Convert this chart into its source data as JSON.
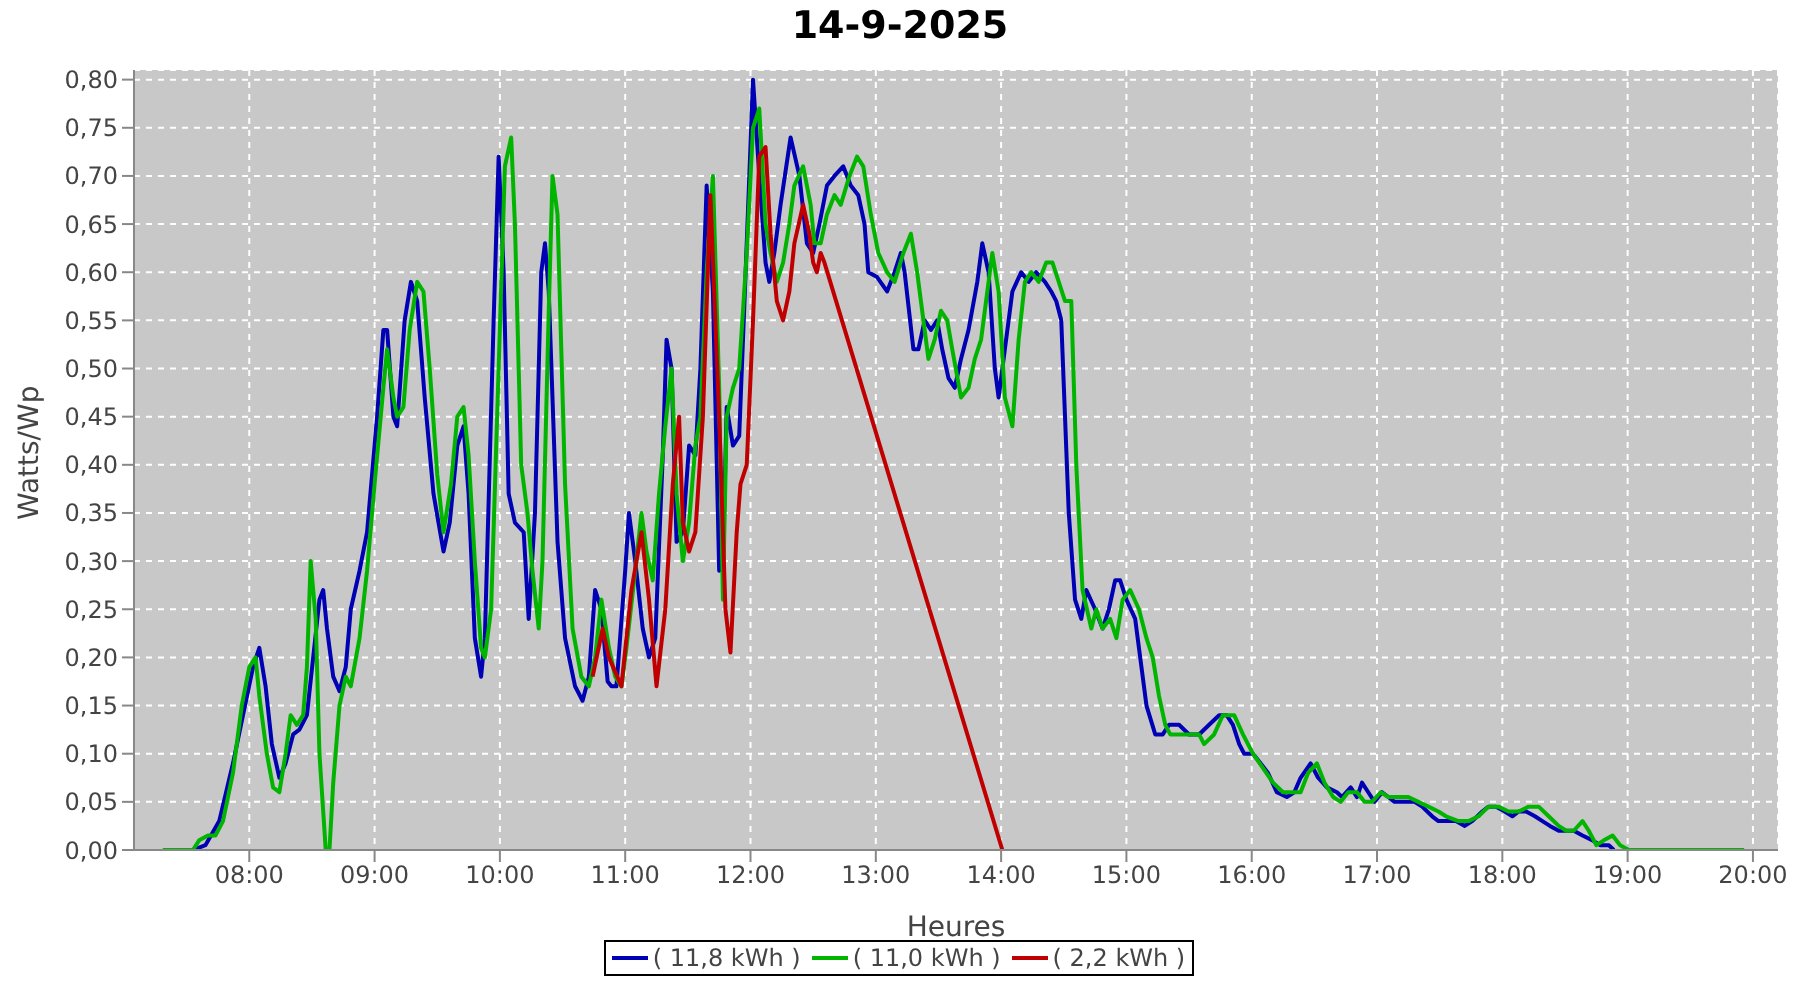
{
  "chart_data": {
    "type": "line",
    "title": "14-9-2025",
    "xlabel": "Heures",
    "ylabel": "Watts/Wp",
    "xlim": [
      7.08,
      20.2
    ],
    "xticks": [
      {
        "value": 8,
        "label": "08:00"
      },
      {
        "value": 9,
        "label": "09:00"
      },
      {
        "value": 10,
        "label": "10:00"
      },
      {
        "value": 11,
        "label": "11:00"
      },
      {
        "value": 12,
        "label": "12:00"
      },
      {
        "value": 13,
        "label": "13:00"
      },
      {
        "value": 14,
        "label": "14:00"
      },
      {
        "value": 15,
        "label": "15:00"
      },
      {
        "value": 16,
        "label": "16:00"
      },
      {
        "value": 17,
        "label": "17:00"
      },
      {
        "value": 18,
        "label": "18:00"
      },
      {
        "value": 19,
        "label": "19:00"
      },
      {
        "value": 20,
        "label": "20:00"
      }
    ],
    "ylim": [
      0,
      0.81
    ],
    "yticks": [
      {
        "value": 0,
        "label": "0,00"
      },
      {
        "value": 0.05,
        "label": "0,05"
      },
      {
        "value": 0.1,
        "label": "0,10"
      },
      {
        "value": 0.15,
        "label": "0,15"
      },
      {
        "value": 0.2,
        "label": "0,20"
      },
      {
        "value": 0.25,
        "label": "0,25"
      },
      {
        "value": 0.3,
        "label": "0,30"
      },
      {
        "value": 0.35,
        "label": "0,35"
      },
      {
        "value": 0.4,
        "label": "0,40"
      },
      {
        "value": 0.45,
        "label": "0,45"
      },
      {
        "value": 0.5,
        "label": "0,50"
      },
      {
        "value": 0.55,
        "label": "0,55"
      },
      {
        "value": 0.6,
        "label": "0,60"
      },
      {
        "value": 0.65,
        "label": "0,65"
      },
      {
        "value": 0.7,
        "label": "0,70"
      },
      {
        "value": 0.75,
        "label": "0,75"
      },
      {
        "value": 0.8,
        "label": "0,80"
      }
    ],
    "grid": true,
    "legend": "bottom",
    "marker": "none",
    "line_style": "solid",
    "series": [
      {
        "name": "( 11,8 kWh )",
        "color": "#0000b4",
        "x": [
          7.55,
          7.65,
          7.76,
          7.87,
          7.95,
          8.03,
          8.08,
          8.13,
          8.18,
          8.24,
          8.29,
          8.35,
          8.4,
          8.46,
          8.51,
          8.56,
          8.59,
          8.62,
          8.67,
          8.72,
          8.77,
          8.81,
          8.88,
          8.94,
          9.02,
          9.07,
          9.1,
          9.15,
          9.18,
          9.24,
          9.29,
          9.34,
          9.4,
          9.47,
          9.55,
          9.6,
          9.66,
          9.71,
          9.75,
          9.8,
          9.85,
          9.88,
          9.95,
          9.99,
          10.03,
          10.07,
          10.12,
          10.19,
          10.23,
          10.28,
          10.33,
          10.36,
          10.39,
          10.46,
          10.52,
          10.6,
          10.66,
          10.71,
          10.76,
          10.81,
          10.86,
          10.89,
          10.93,
          11.0,
          11.03,
          11.08,
          11.14,
          11.19,
          11.24,
          11.3,
          11.33,
          11.37,
          11.41,
          11.46,
          11.51,
          11.56,
          11.6,
          11.65,
          11.7,
          11.75,
          11.78,
          11.81,
          11.86,
          11.91,
          11.97,
          12.02,
          12.07,
          12.12,
          12.15,
          12.19,
          12.24,
          12.32,
          12.39,
          12.45,
          12.5,
          12.55,
          12.61,
          12.67,
          12.74,
          12.8,
          12.86,
          12.91,
          12.94,
          13.01,
          13.09,
          13.15,
          13.2,
          13.23,
          13.3,
          13.34,
          13.39,
          13.44,
          13.49,
          13.53,
          13.58,
          13.63,
          13.68,
          13.74,
          13.81,
          13.85,
          13.9,
          13.95,
          13.98,
          14.03,
          14.09,
          14.16,
          14.22,
          14.28,
          14.35,
          14.4,
          14.44,
          14.48,
          14.54,
          14.59,
          14.64,
          14.68,
          14.75,
          14.81,
          14.86,
          14.91,
          14.95,
          15.0,
          15.07,
          15.11,
          15.16,
          15.23,
          15.29,
          15.34,
          15.42,
          15.5,
          15.58,
          15.66,
          15.74,
          15.8,
          15.85,
          15.9,
          15.94,
          16.01,
          16.07,
          16.13,
          16.2,
          16.28,
          16.34,
          16.39,
          16.47,
          16.53,
          16.6,
          16.68,
          16.72,
          16.79,
          16.84,
          16.88,
          16.93,
          16.98,
          17.04,
          17.09,
          17.14,
          17.22,
          17.3,
          17.36,
          17.44,
          17.49,
          17.55,
          17.63,
          17.7,
          17.76,
          17.84,
          17.89,
          17.95,
          18.02,
          18.08,
          18.13,
          18.19,
          18.26,
          18.32,
          18.38,
          18.45,
          18.51,
          18.57,
          18.64,
          18.72,
          18.78,
          18.85,
          18.89
        ],
        "values": [
          0,
          0.005,
          0.03,
          0.09,
          0.14,
          0.19,
          0.21,
          0.17,
          0.11,
          0.075,
          0.09,
          0.12,
          0.125,
          0.14,
          0.2,
          0.26,
          0.27,
          0.23,
          0.18,
          0.165,
          0.19,
          0.25,
          0.29,
          0.33,
          0.45,
          0.54,
          0.54,
          0.45,
          0.44,
          0.55,
          0.59,
          0.57,
          0.47,
          0.37,
          0.31,
          0.34,
          0.42,
          0.44,
          0.37,
          0.22,
          0.18,
          0.22,
          0.55,
          0.72,
          0.6,
          0.37,
          0.34,
          0.33,
          0.24,
          0.35,
          0.6,
          0.63,
          0.58,
          0.32,
          0.22,
          0.17,
          0.155,
          0.18,
          0.27,
          0.25,
          0.175,
          0.17,
          0.17,
          0.29,
          0.35,
          0.3,
          0.23,
          0.2,
          0.22,
          0.41,
          0.53,
          0.5,
          0.32,
          0.33,
          0.42,
          0.41,
          0.5,
          0.69,
          0.58,
          0.29,
          0.3,
          0.46,
          0.42,
          0.43,
          0.63,
          0.8,
          0.7,
          0.61,
          0.59,
          0.62,
          0.67,
          0.74,
          0.7,
          0.63,
          0.62,
          0.65,
          0.69,
          0.7,
          0.71,
          0.69,
          0.68,
          0.65,
          0.6,
          0.595,
          0.58,
          0.6,
          0.62,
          0.6,
          0.52,
          0.52,
          0.55,
          0.54,
          0.55,
          0.52,
          0.49,
          0.48,
          0.51,
          0.54,
          0.59,
          0.63,
          0.6,
          0.5,
          0.47,
          0.52,
          0.58,
          0.6,
          0.59,
          0.6,
          0.59,
          0.58,
          0.57,
          0.55,
          0.35,
          0.26,
          0.24,
          0.27,
          0.25,
          0.23,
          0.25,
          0.28,
          0.28,
          0.26,
          0.24,
          0.2,
          0.15,
          0.12,
          0.12,
          0.13,
          0.13,
          0.12,
          0.12,
          0.13,
          0.14,
          0.14,
          0.13,
          0.11,
          0.1,
          0.1,
          0.09,
          0.08,
          0.06,
          0.055,
          0.06,
          0.075,
          0.09,
          0.075,
          0.065,
          0.06,
          0.055,
          0.065,
          0.055,
          0.07,
          0.06,
          0.05,
          0.06,
          0.055,
          0.05,
          0.05,
          0.05,
          0.045,
          0.035,
          0.03,
          0.03,
          0.03,
          0.025,
          0.03,
          0.04,
          0.045,
          0.045,
          0.04,
          0.035,
          0.04,
          0.04,
          0.035,
          0.03,
          0.025,
          0.02,
          0.02,
          0.02,
          0.015,
          0.01,
          0.005,
          0.005,
          0
        ]
      },
      {
        "name": "( 11,0 kWh )",
        "color": "#00b400",
        "x": [
          7.31,
          7.55,
          7.6,
          7.67,
          7.73,
          7.79,
          7.87,
          7.94,
          8.0,
          8.05,
          8.08,
          8.14,
          8.19,
          8.24,
          8.29,
          8.33,
          8.38,
          8.43,
          8.46,
          8.49,
          8.53,
          8.56,
          8.61,
          8.64,
          8.67,
          8.72,
          8.77,
          8.81,
          8.88,
          8.94,
          9.0,
          9.07,
          9.1,
          9.15,
          9.18,
          9.23,
          9.28,
          9.34,
          9.39,
          9.44,
          9.5,
          9.55,
          9.61,
          9.66,
          9.71,
          9.75,
          9.8,
          9.85,
          9.88,
          9.93,
          9.99,
          10.04,
          10.09,
          10.12,
          10.17,
          10.22,
          10.26,
          10.31,
          10.34,
          10.39,
          10.42,
          10.46,
          10.52,
          10.58,
          10.65,
          10.71,
          10.76,
          10.81,
          10.87,
          10.92,
          10.97,
          11.01,
          11.08,
          11.13,
          11.17,
          11.22,
          11.27,
          11.32,
          11.37,
          11.41,
          11.46,
          11.51,
          11.56,
          11.6,
          11.65,
          11.7,
          11.75,
          11.78,
          11.81,
          11.86,
          11.91,
          11.97,
          12.02,
          12.07,
          12.12,
          12.16,
          12.21,
          12.26,
          12.31,
          12.35,
          12.42,
          12.48,
          12.51,
          12.56,
          12.61,
          12.67,
          12.72,
          12.79,
          12.85,
          12.9,
          12.96,
          13.02,
          13.09,
          13.15,
          13.22,
          13.28,
          13.33,
          13.38,
          13.42,
          13.47,
          13.52,
          13.57,
          13.61,
          13.68,
          13.74,
          13.79,
          13.84,
          13.89,
          13.93,
          13.98,
          14.03,
          14.09,
          14.14,
          14.19,
          14.24,
          14.3,
          14.36,
          14.41,
          14.46,
          14.51,
          14.56,
          14.6,
          14.65,
          14.72,
          14.76,
          14.81,
          14.87,
          14.92,
          14.97,
          15.03,
          15.1,
          15.16,
          15.21,
          15.26,
          15.31,
          15.35,
          15.42,
          15.5,
          15.58,
          15.62,
          15.7,
          15.77,
          15.86,
          15.93,
          16.01,
          16.09,
          16.17,
          16.25,
          16.31,
          16.39,
          16.45,
          16.52,
          16.58,
          16.65,
          16.71,
          16.77,
          16.84,
          16.9,
          16.96,
          17.03,
          17.09,
          17.17,
          17.25,
          17.33,
          17.41,
          17.49,
          17.55,
          17.65,
          17.73,
          17.81,
          17.89,
          17.97,
          18.05,
          18.13,
          18.21,
          18.29,
          18.37,
          18.45,
          18.51,
          18.57,
          18.64,
          18.69,
          18.75,
          18.81,
          18.88,
          18.94,
          19.01,
          19.09,
          19.93
        ],
        "values": [
          0,
          0,
          0.01,
          0.015,
          0.015,
          0.03,
          0.08,
          0.15,
          0.19,
          0.2,
          0.16,
          0.1,
          0.065,
          0.06,
          0.1,
          0.14,
          0.13,
          0.14,
          0.19,
          0.3,
          0.24,
          0.1,
          0,
          0,
          0.07,
          0.15,
          0.18,
          0.17,
          0.22,
          0.29,
          0.38,
          0.48,
          0.52,
          0.47,
          0.45,
          0.46,
          0.54,
          0.59,
          0.58,
          0.5,
          0.39,
          0.33,
          0.38,
          0.45,
          0.46,
          0.41,
          0.3,
          0.21,
          0.2,
          0.25,
          0.5,
          0.71,
          0.74,
          0.65,
          0.4,
          0.35,
          0.29,
          0.23,
          0.3,
          0.56,
          0.7,
          0.66,
          0.38,
          0.23,
          0.18,
          0.17,
          0.2,
          0.26,
          0.21,
          0.18,
          0.17,
          0.21,
          0.29,
          0.35,
          0.31,
          0.28,
          0.37,
          0.44,
          0.5,
          0.37,
          0.3,
          0.34,
          0.42,
          0.45,
          0.6,
          0.7,
          0.48,
          0.26,
          0.45,
          0.48,
          0.5,
          0.62,
          0.75,
          0.77,
          0.65,
          0.62,
          0.59,
          0.61,
          0.65,
          0.69,
          0.71,
          0.67,
          0.63,
          0.63,
          0.66,
          0.68,
          0.67,
          0.7,
          0.72,
          0.71,
          0.66,
          0.62,
          0.6,
          0.59,
          0.62,
          0.64,
          0.6,
          0.55,
          0.51,
          0.53,
          0.56,
          0.55,
          0.52,
          0.47,
          0.48,
          0.51,
          0.53,
          0.58,
          0.62,
          0.58,
          0.47,
          0.44,
          0.53,
          0.59,
          0.6,
          0.59,
          0.61,
          0.61,
          0.59,
          0.57,
          0.57,
          0.4,
          0.27,
          0.23,
          0.25,
          0.23,
          0.24,
          0.22,
          0.26,
          0.27,
          0.25,
          0.22,
          0.2,
          0.16,
          0.13,
          0.12,
          0.12,
          0.12,
          0.12,
          0.11,
          0.12,
          0.14,
          0.14,
          0.12,
          0.1,
          0.085,
          0.07,
          0.06,
          0.06,
          0.06,
          0.08,
          0.09,
          0.07,
          0.055,
          0.05,
          0.06,
          0.06,
          0.05,
          0.05,
          0.06,
          0.055,
          0.055,
          0.055,
          0.05,
          0.045,
          0.04,
          0.035,
          0.03,
          0.03,
          0.035,
          0.045,
          0.045,
          0.04,
          0.04,
          0.045,
          0.045,
          0.035,
          0.025,
          0.02,
          0.02,
          0.03,
          0.02,
          0.005,
          0.01,
          0.015,
          0.005,
          0,
          0,
          0
        ]
      },
      {
        "name": "( 2,2 kWh )",
        "color": "#c00000",
        "x": [
          10.74,
          10.82,
          10.87,
          10.97,
          11.05,
          11.13,
          11.19,
          11.25,
          11.32,
          11.38,
          11.43,
          11.46,
          11.51,
          11.56,
          11.62,
          11.68,
          11.75,
          11.8,
          11.84,
          11.89,
          11.92,
          11.97,
          12.02,
          12.07,
          12.12,
          12.16,
          12.21,
          12.26,
          12.31,
          12.35,
          12.42,
          12.47,
          12.5,
          12.53,
          12.56,
          12.59,
          14.01
        ],
        "values": [
          0.18,
          0.23,
          0.2,
          0.17,
          0.27,
          0.33,
          0.26,
          0.17,
          0.25,
          0.38,
          0.45,
          0.34,
          0.31,
          0.33,
          0.45,
          0.68,
          0.45,
          0.25,
          0.205,
          0.33,
          0.38,
          0.4,
          0.55,
          0.72,
          0.73,
          0.64,
          0.57,
          0.55,
          0.58,
          0.63,
          0.67,
          0.64,
          0.61,
          0.6,
          0.62,
          0.61,
          0
        ]
      }
    ]
  }
}
